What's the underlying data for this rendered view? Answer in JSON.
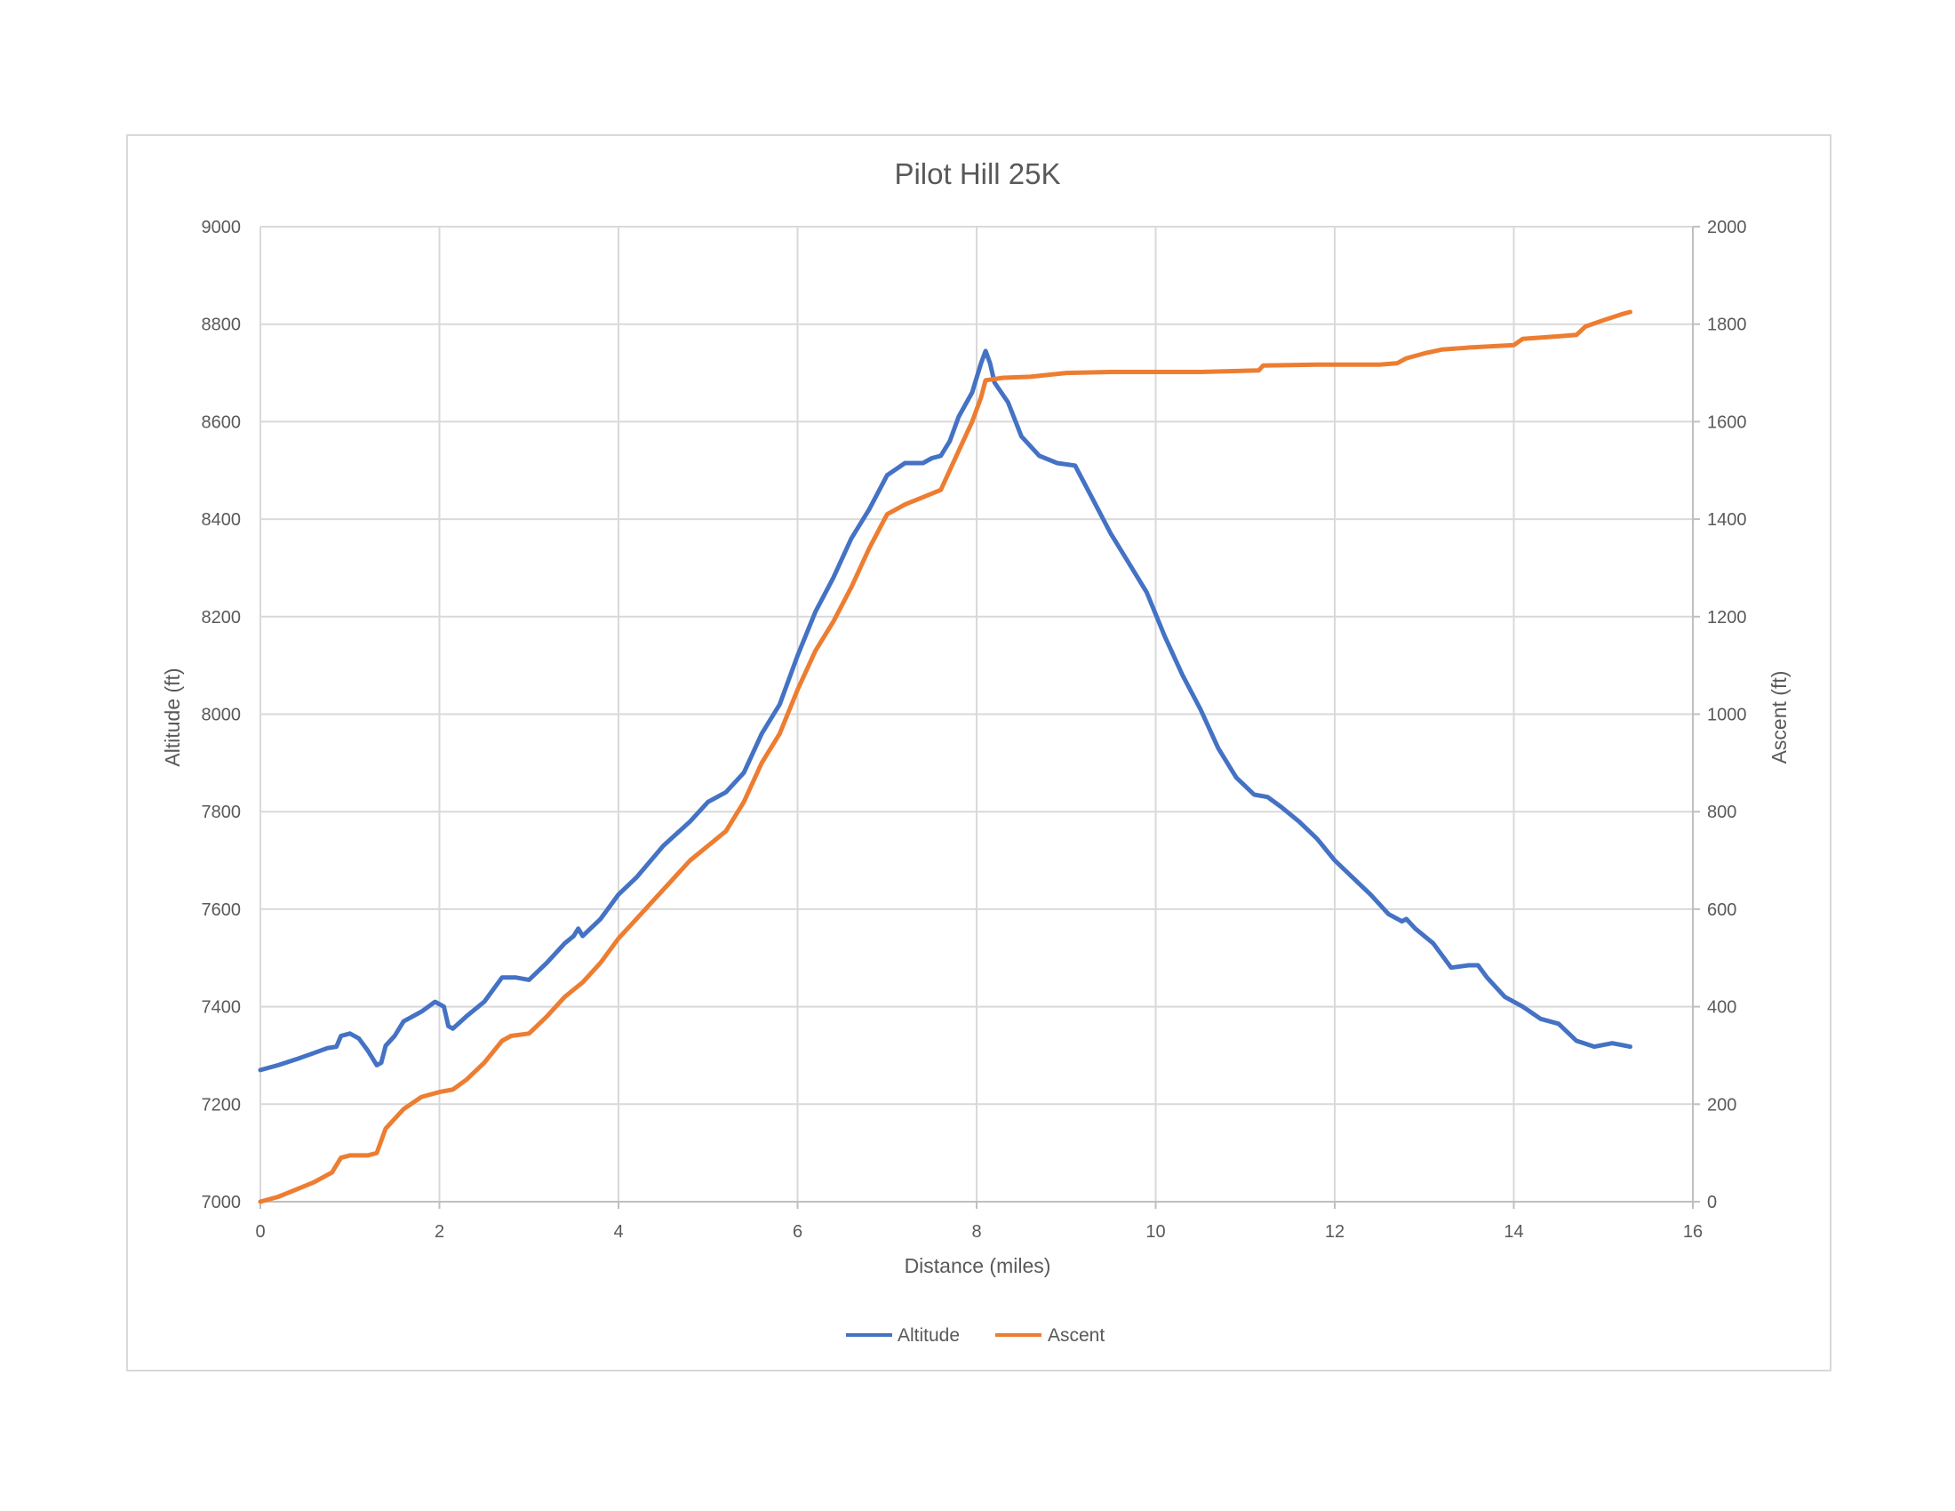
{
  "chart_data": {
    "type": "line",
    "title": "Pilot Hill 25K",
    "xlabel": "Distance (miles)",
    "ylabel": "Altitude (ft)",
    "y2label": "Ascent (ft)",
    "xlim": [
      0,
      16
    ],
    "ylim": [
      7000,
      9000
    ],
    "y2lim": [
      0,
      2000
    ],
    "x_ticks": [
      "0",
      "2",
      "4",
      "6",
      "8",
      "10",
      "12",
      "14",
      "16"
    ],
    "y_ticks": [
      "7000",
      "7200",
      "7400",
      "7600",
      "7800",
      "8000",
      "8200",
      "8400",
      "8600",
      "8800",
      "9000"
    ],
    "y2_ticks": [
      "0",
      "200",
      "400",
      "600",
      "800",
      "1000",
      "1200",
      "1400",
      "1600",
      "1800",
      "2000"
    ],
    "grid": true,
    "legend_position": "bottom",
    "series": [
      {
        "name": "Altitude",
        "axis": "left",
        "color": "#4472c4",
        "points": [
          [
            0,
            7270
          ],
          [
            0.2,
            7280
          ],
          [
            0.4,
            7292
          ],
          [
            0.6,
            7305
          ],
          [
            0.75,
            7315
          ],
          [
            0.85,
            7318
          ],
          [
            0.9,
            7340
          ],
          [
            1.0,
            7345
          ],
          [
            1.1,
            7335
          ],
          [
            1.2,
            7310
          ],
          [
            1.3,
            7280
          ],
          [
            1.35,
            7285
          ],
          [
            1.4,
            7320
          ],
          [
            1.5,
            7340
          ],
          [
            1.6,
            7370
          ],
          [
            1.8,
            7390
          ],
          [
            1.95,
            7410
          ],
          [
            2.05,
            7400
          ],
          [
            2.1,
            7360
          ],
          [
            2.15,
            7355
          ],
          [
            2.3,
            7380
          ],
          [
            2.5,
            7410
          ],
          [
            2.7,
            7460
          ],
          [
            2.85,
            7460
          ],
          [
            3.0,
            7455
          ],
          [
            3.2,
            7490
          ],
          [
            3.4,
            7530
          ],
          [
            3.5,
            7545
          ],
          [
            3.55,
            7560
          ],
          [
            3.6,
            7545
          ],
          [
            3.8,
            7580
          ],
          [
            4.0,
            7630
          ],
          [
            4.2,
            7665
          ],
          [
            4.5,
            7730
          ],
          [
            4.8,
            7780
          ],
          [
            5.0,
            7820
          ],
          [
            5.2,
            7840
          ],
          [
            5.4,
            7880
          ],
          [
            5.6,
            7960
          ],
          [
            5.8,
            8020
          ],
          [
            6.0,
            8120
          ],
          [
            6.2,
            8210
          ],
          [
            6.4,
            8280
          ],
          [
            6.6,
            8360
          ],
          [
            6.8,
            8420
          ],
          [
            7.0,
            8490
          ],
          [
            7.2,
            8515
          ],
          [
            7.4,
            8515
          ],
          [
            7.5,
            8525
          ],
          [
            7.6,
            8530
          ],
          [
            7.7,
            8560
          ],
          [
            7.8,
            8610
          ],
          [
            7.95,
            8660
          ],
          [
            8.05,
            8720
          ],
          [
            8.1,
            8745
          ],
          [
            8.15,
            8720
          ],
          [
            8.2,
            8680
          ],
          [
            8.35,
            8640
          ],
          [
            8.5,
            8570
          ],
          [
            8.7,
            8530
          ],
          [
            8.9,
            8515
          ],
          [
            9.1,
            8510
          ],
          [
            9.3,
            8440
          ],
          [
            9.5,
            8370
          ],
          [
            9.7,
            8310
          ],
          [
            9.9,
            8250
          ],
          [
            10.1,
            8160
          ],
          [
            10.3,
            8080
          ],
          [
            10.5,
            8010
          ],
          [
            10.7,
            7930
          ],
          [
            10.9,
            7870
          ],
          [
            11.1,
            7835
          ],
          [
            11.25,
            7830
          ],
          [
            11.4,
            7810
          ],
          [
            11.6,
            7780
          ],
          [
            11.8,
            7745
          ],
          [
            12.0,
            7700
          ],
          [
            12.2,
            7665
          ],
          [
            12.4,
            7630
          ],
          [
            12.6,
            7590
          ],
          [
            12.75,
            7575
          ],
          [
            12.8,
            7580
          ],
          [
            12.9,
            7560
          ],
          [
            13.1,
            7530
          ],
          [
            13.3,
            7480
          ],
          [
            13.5,
            7485
          ],
          [
            13.6,
            7485
          ],
          [
            13.7,
            7460
          ],
          [
            13.9,
            7420
          ],
          [
            14.1,
            7400
          ],
          [
            14.3,
            7375
          ],
          [
            14.5,
            7365
          ],
          [
            14.7,
            7330
          ],
          [
            14.9,
            7318
          ],
          [
            15.1,
            7325
          ],
          [
            15.3,
            7318
          ]
        ]
      },
      {
        "name": "Ascent",
        "axis": "right",
        "color": "#ed7d31",
        "points": [
          [
            0,
            0
          ],
          [
            0.2,
            10
          ],
          [
            0.4,
            25
          ],
          [
            0.6,
            40
          ],
          [
            0.8,
            60
          ],
          [
            0.9,
            90
          ],
          [
            1.0,
            95
          ],
          [
            1.2,
            95
          ],
          [
            1.3,
            100
          ],
          [
            1.4,
            150
          ],
          [
            1.6,
            190
          ],
          [
            1.8,
            215
          ],
          [
            2.0,
            225
          ],
          [
            2.15,
            230
          ],
          [
            2.3,
            250
          ],
          [
            2.5,
            285
          ],
          [
            2.7,
            330
          ],
          [
            2.8,
            340
          ],
          [
            3.0,
            345
          ],
          [
            3.2,
            380
          ],
          [
            3.4,
            420
          ],
          [
            3.6,
            450
          ],
          [
            3.8,
            490
          ],
          [
            4.0,
            540
          ],
          [
            4.2,
            580
          ],
          [
            4.4,
            620
          ],
          [
            4.6,
            660
          ],
          [
            4.8,
            700
          ],
          [
            5.0,
            730
          ],
          [
            5.2,
            760
          ],
          [
            5.4,
            820
          ],
          [
            5.6,
            900
          ],
          [
            5.8,
            960
          ],
          [
            6.0,
            1050
          ],
          [
            6.2,
            1130
          ],
          [
            6.4,
            1190
          ],
          [
            6.6,
            1260
          ],
          [
            6.8,
            1340
          ],
          [
            7.0,
            1410
          ],
          [
            7.2,
            1430
          ],
          [
            7.4,
            1445
          ],
          [
            7.6,
            1460
          ],
          [
            7.8,
            1540
          ],
          [
            7.95,
            1600
          ],
          [
            8.05,
            1650
          ],
          [
            8.1,
            1685
          ],
          [
            8.3,
            1690
          ],
          [
            8.6,
            1692
          ],
          [
            9.0,
            1700
          ],
          [
            9.5,
            1702
          ],
          [
            10.0,
            1702
          ],
          [
            10.5,
            1702
          ],
          [
            11.15,
            1705
          ],
          [
            11.2,
            1715
          ],
          [
            11.8,
            1717
          ],
          [
            12.5,
            1717
          ],
          [
            12.7,
            1720
          ],
          [
            12.8,
            1730
          ],
          [
            13.0,
            1740
          ],
          [
            13.2,
            1748
          ],
          [
            13.5,
            1752
          ],
          [
            14.0,
            1757
          ],
          [
            14.1,
            1770
          ],
          [
            14.5,
            1775
          ],
          [
            14.7,
            1778
          ],
          [
            14.8,
            1795
          ],
          [
            15.0,
            1808
          ],
          [
            15.2,
            1820
          ],
          [
            15.3,
            1825
          ]
        ]
      }
    ]
  }
}
